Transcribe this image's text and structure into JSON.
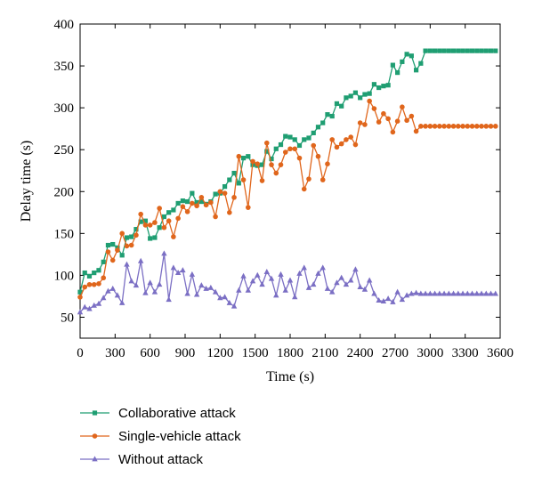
{
  "chart_data": {
    "type": "line",
    "xlabel": "Time (s)",
    "ylabel": "Delay time (s)",
    "xlim": [
      0,
      3600
    ],
    "ylim": [
      25,
      400
    ],
    "xticks": [
      0,
      300,
      600,
      900,
      1200,
      1500,
      1800,
      2100,
      2400,
      2700,
      3000,
      3300,
      3600
    ],
    "yticks": [
      50,
      100,
      150,
      200,
      250,
      300,
      350,
      400
    ],
    "xtick_labels": [
      "0",
      "300",
      "600",
      "900",
      "1200",
      "1500",
      "1800",
      "2100",
      "2400",
      "2700",
      "3000",
      "3300",
      "3600"
    ],
    "ytick_labels": [
      "50",
      "100",
      "150",
      "200",
      "250",
      "300",
      "350",
      "400"
    ],
    "grid": false,
    "legend_position": "bottom-left",
    "x": [
      0,
      40,
      80,
      120,
      160,
      200,
      240,
      280,
      320,
      360,
      400,
      440,
      480,
      520,
      560,
      600,
      640,
      680,
      720,
      760,
      800,
      840,
      880,
      920,
      960,
      1000,
      1040,
      1080,
      1120,
      1160,
      1200,
      1240,
      1280,
      1320,
      1360,
      1400,
      1440,
      1480,
      1520,
      1560,
      1600,
      1640,
      1680,
      1720,
      1760,
      1800,
      1840,
      1880,
      1920,
      1960,
      2000,
      2040,
      2080,
      2120,
      2160,
      2200,
      2240,
      2280,
      2320,
      2360,
      2400,
      2440,
      2480,
      2520,
      2560,
      2600,
      2640,
      2680,
      2720,
      2760,
      2800,
      2840,
      2880,
      2920,
      2960,
      3000,
      3040,
      3080,
      3120,
      3160,
      3200,
      3240,
      3280,
      3320,
      3360,
      3400,
      3440,
      3480,
      3520,
      3560
    ],
    "series": [
      {
        "name": "Collaborative attack",
        "color": "#1f9e72",
        "marker": "square",
        "values": [
          80,
          103,
          99,
          103,
          106,
          116,
          136,
          137,
          133,
          124,
          145,
          146,
          155,
          164,
          165,
          144,
          145,
          157,
          170,
          175,
          178,
          186,
          189,
          188,
          198,
          187,
          188,
          185,
          188,
          197,
          198,
          206,
          214,
          222,
          210,
          240,
          242,
          232,
          231,
          232,
          248,
          239,
          251,
          256,
          266,
          265,
          262,
          255,
          262,
          264,
          270,
          277,
          282,
          292,
          290,
          305,
          302,
          312,
          314,
          318,
          312,
          316,
          317,
          328,
          324,
          326,
          327,
          351,
          342,
          355,
          364,
          362,
          345,
          353,
          368,
          368,
          368,
          368,
          368,
          368,
          368,
          368,
          368,
          368,
          368,
          368,
          368,
          368,
          368,
          368
        ]
      },
      {
        "name": "Single-vehicle attack",
        "color": "#e0661c",
        "marker": "circle",
        "values": [
          74,
          86,
          89,
          89,
          90,
          97,
          128,
          118,
          130,
          150,
          135,
          136,
          148,
          173,
          160,
          160,
          163,
          180,
          157,
          165,
          146,
          168,
          182,
          176,
          186,
          183,
          193,
          184,
          187,
          170,
          200,
          198,
          175,
          193,
          242,
          214,
          181,
          236,
          233,
          213,
          258,
          232,
          222,
          232,
          247,
          251,
          251,
          240,
          203,
          215,
          255,
          242,
          214,
          233,
          262,
          253,
          257,
          262,
          265,
          256,
          282,
          280,
          308,
          299,
          283,
          293,
          287,
          271,
          284,
          301,
          285,
          290,
          272,
          278,
          278,
          278,
          278,
          278,
          278,
          278,
          278,
          278,
          278,
          278,
          278,
          278,
          278,
          278,
          278,
          278
        ]
      },
      {
        "name": "Without attack",
        "color": "#7b6fc4",
        "marker": "triangle",
        "values": [
          56,
          62,
          60,
          64,
          66,
          73,
          81,
          84,
          76,
          67,
          113,
          93,
          88,
          117,
          79,
          91,
          80,
          89,
          126,
          71,
          109,
          103,
          106,
          78,
          101,
          77,
          88,
          84,
          85,
          80,
          73,
          74,
          67,
          63,
          82,
          99,
          82,
          93,
          100,
          89,
          104,
          96,
          76,
          101,
          82,
          94,
          74,
          102,
          109,
          85,
          89,
          102,
          109,
          84,
          80,
          91,
          97,
          89,
          94,
          107,
          86,
          83,
          94,
          78,
          70,
          69,
          72,
          68,
          80,
          71,
          76,
          78,
          79,
          78,
          78,
          78,
          78,
          78,
          78,
          78,
          78,
          78,
          78,
          78,
          78,
          78,
          78,
          78,
          78,
          78
        ]
      }
    ]
  }
}
